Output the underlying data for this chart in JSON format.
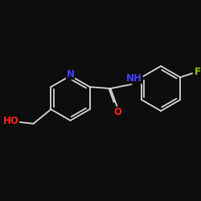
{
  "background_color": "#0d0d0d",
  "bond_color": "#d8d8d8",
  "N_color": "#4040ff",
  "O_color": "#ff2020",
  "F_color": "#88cc00",
  "figsize": [
    2.5,
    2.5
  ],
  "dpi": 100,
  "label_N": "N",
  "label_NH": "NH",
  "label_O": "O",
  "label_F": "F",
  "label_HO": "HO",
  "font_size": 8.5
}
